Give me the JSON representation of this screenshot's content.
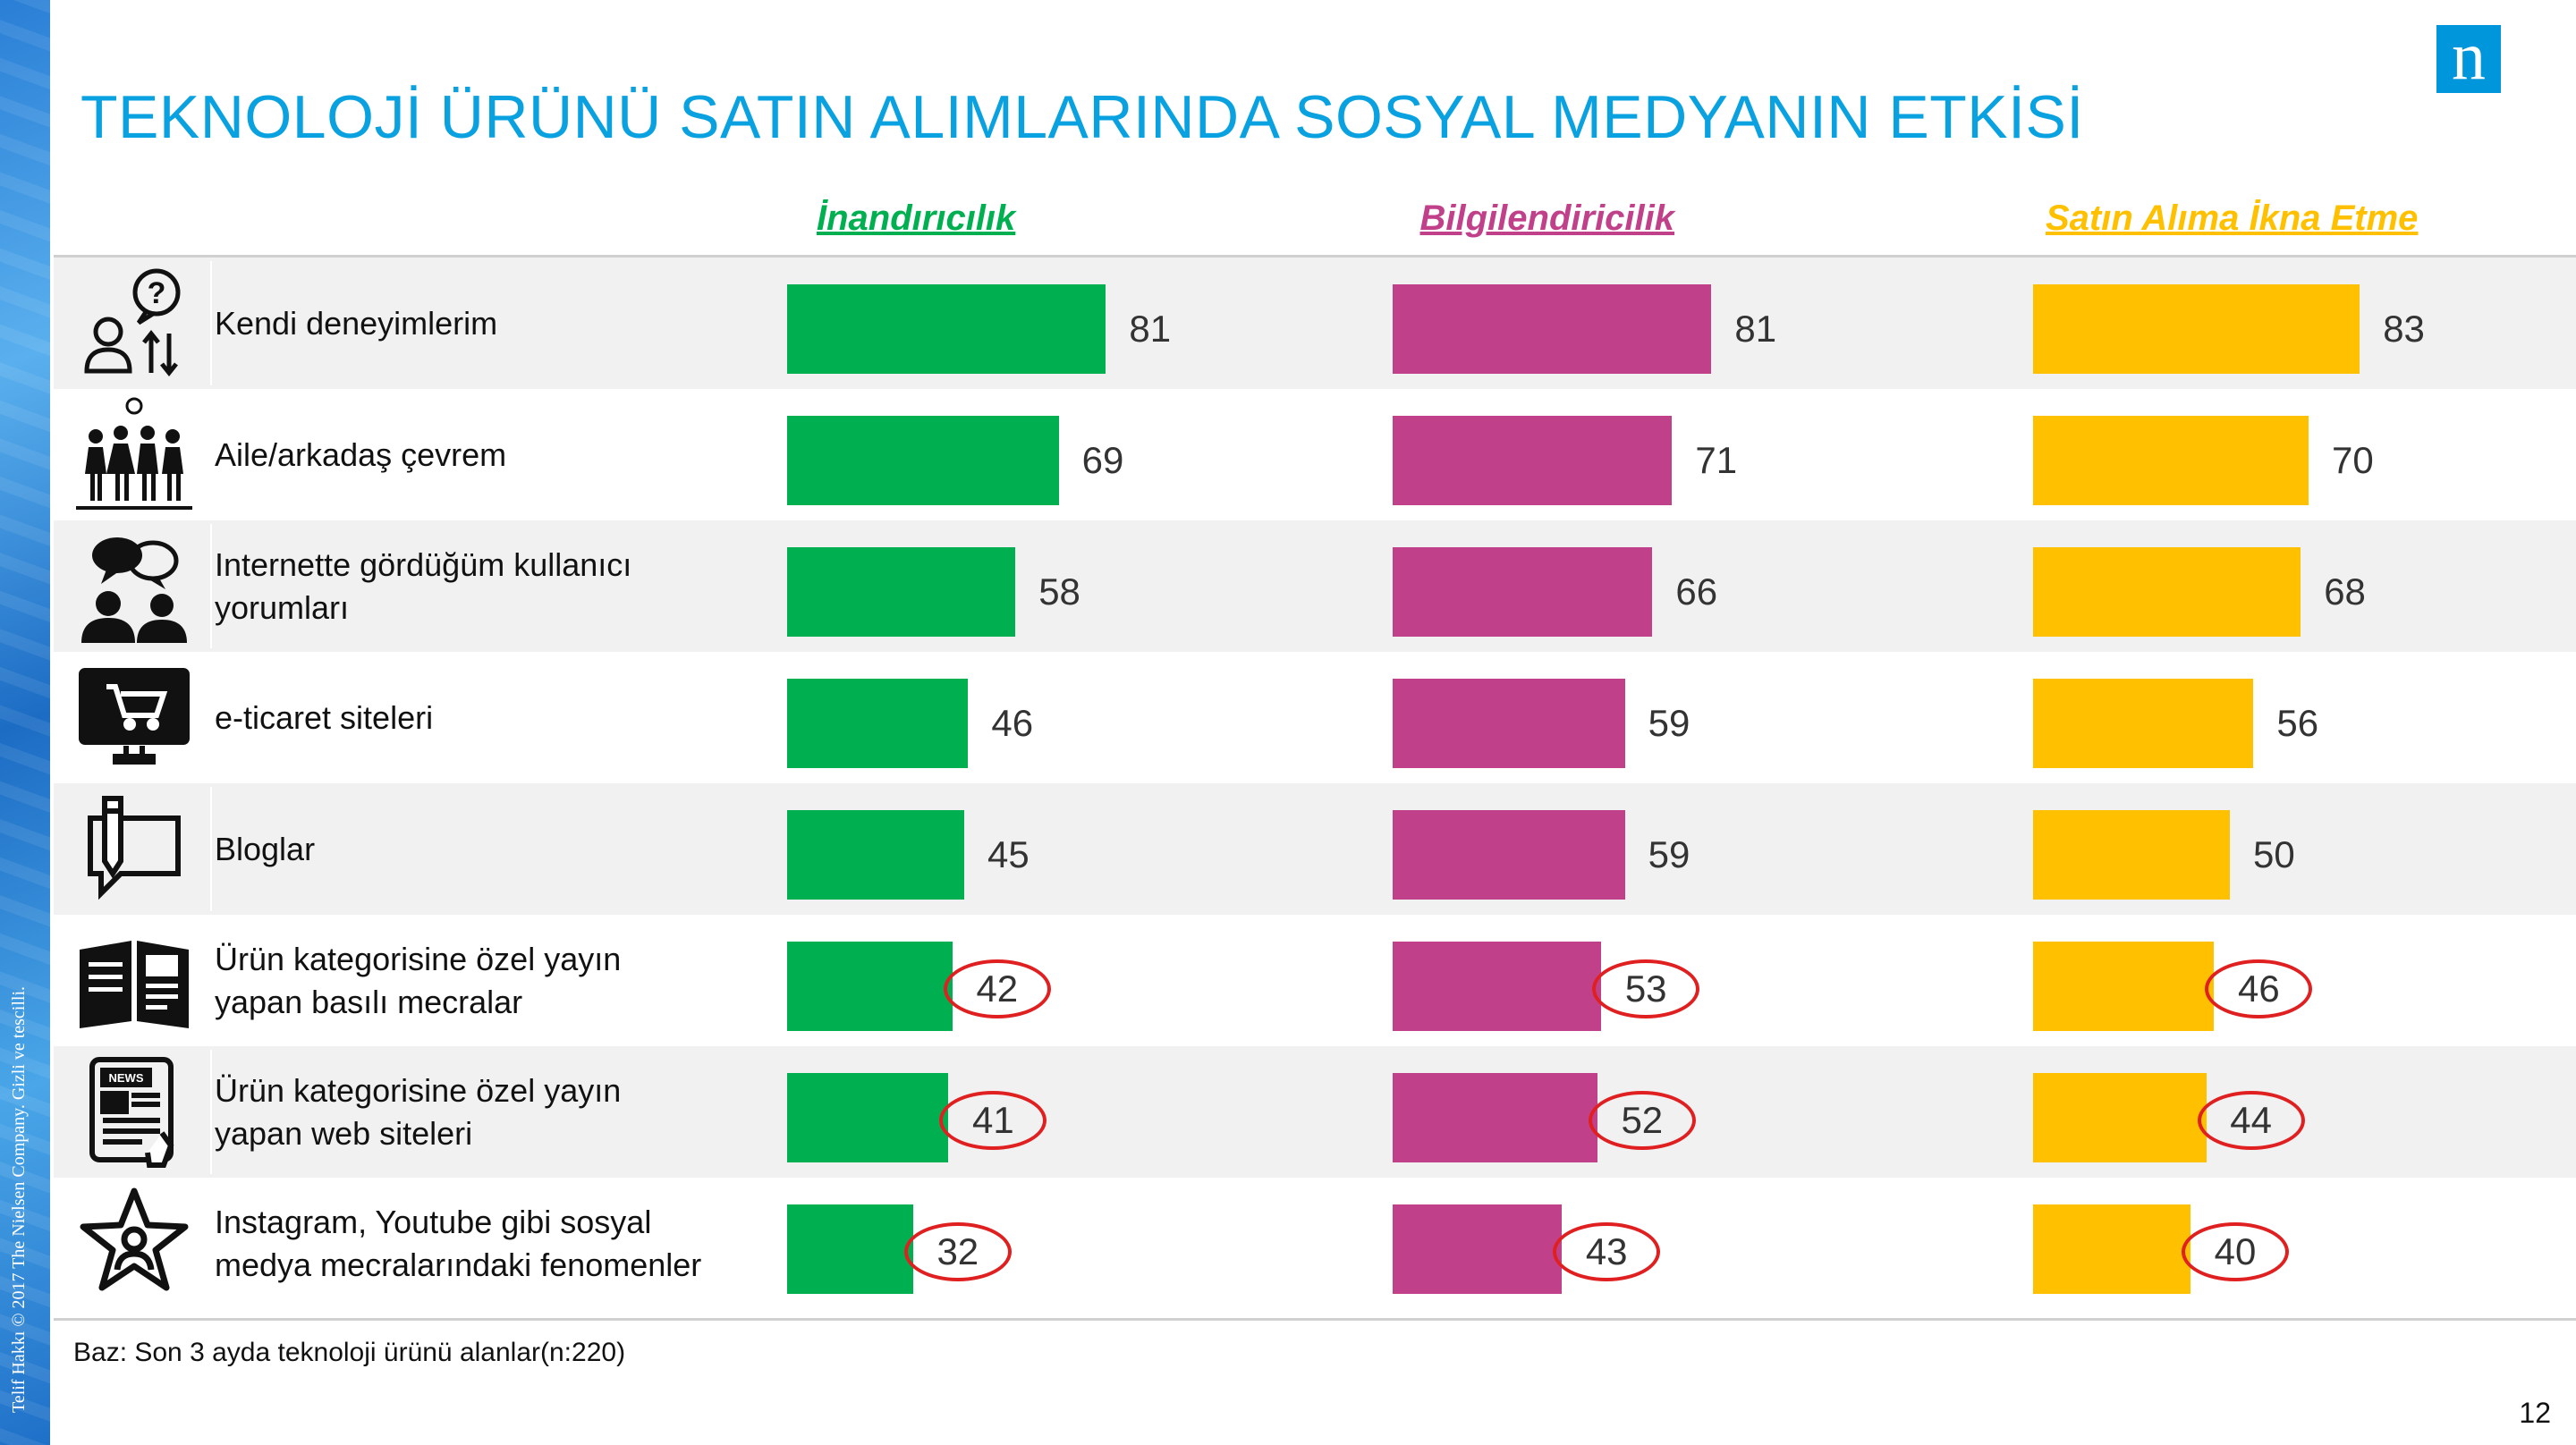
{
  "title": "TEKNOLOJİ ÜRÜNÜ SATIN ALIMLARINDA SOSYAL MEDYANIN ETKİSİ",
  "copyright": "Telif Hakkı © 2017 The Nielsen Company. Gizli ve tescilli.",
  "logo_text": "n",
  "footnote": "Baz: Son 3 ayda teknoloji ürünü alanlar(n:220)",
  "page_number": "12",
  "colors": {
    "green": "#00b050",
    "magenta": "#c0418a",
    "yellow": "#ffc000",
    "title": "#0aa1e0",
    "circle": "#e02020"
  },
  "chart_data": {
    "type": "bar",
    "orientation": "horizontal",
    "categories": [
      "Kendi deneyimlerim",
      "Aile/arkadaş çevrem",
      "Internette gördüğüm kullanıcı yorumları",
      "e-ticaret siteleri",
      "Bloglar",
      "Ürün kategorisine özel yayın yapan basılı mecralar",
      "Ürün kategorisine özel yayın yapan web siteleri",
      "Instagram, Youtube gibi sosyal medya mecralarındaki fenomenler"
    ],
    "category_icons": [
      "person-question-icon",
      "party-friends-icon",
      "chat-people-icon",
      "cart-monitor-icon",
      "blog-pen-icon",
      "magazine-icon",
      "news-tablet-icon",
      "star-person-icon"
    ],
    "series": [
      {
        "name": "İnandırıcılık",
        "color": "#00b050",
        "values": [
          81,
          69,
          58,
          46,
          45,
          42,
          41,
          32
        ]
      },
      {
        "name": "Bilgilendiricilik",
        "color": "#c0418a",
        "values": [
          81,
          71,
          66,
          59,
          59,
          53,
          52,
          43
        ]
      },
      {
        "name": "Satın Alıma İkna Etme",
        "color": "#ffc000",
        "values": [
          83,
          70,
          68,
          56,
          50,
          46,
          44,
          40
        ]
      }
    ],
    "circled_rows": [
      5,
      6,
      7
    ],
    "xlim": [
      0,
      100
    ],
    "title": "TEKNOLOJİ ÜRÜNÜ SATIN ALIMLARINDA SOSYAL MEDYANIN ETKİSİ"
  }
}
